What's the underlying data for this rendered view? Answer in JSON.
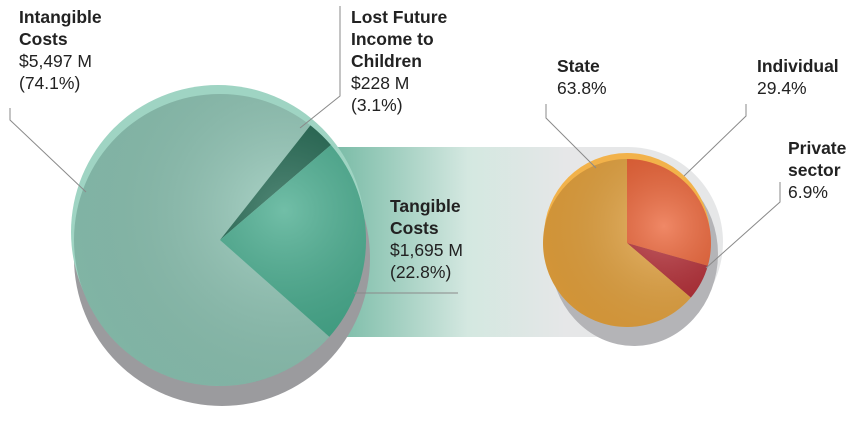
{
  "chart_data": [
    {
      "type": "pie",
      "slices": [
        {
          "name": "Intangible\nCosts",
          "amount": "$5,497 M",
          "percent": "(74.1%)",
          "value": 74.1,
          "color": "#8cc4b3"
        },
        {
          "name": "Lost Future\nIncome to\nChildren",
          "amount": "$228 M",
          "percent": "(3.1%)",
          "value": 3.1,
          "color": "#0f5a42"
        },
        {
          "name": "Tangible\nCosts",
          "amount": "$1,695 M",
          "percent": "(22.8%)",
          "value": 22.8,
          "color": "#3aa585"
        }
      ],
      "legend": "none",
      "grid": false
    },
    {
      "type": "pie",
      "slices": [
        {
          "name": "State",
          "percent": "63.8%",
          "value": 63.8,
          "color": "#e5a23c"
        },
        {
          "name": "Individual",
          "percent": "29.4%",
          "value": 29.4,
          "color": "#ea5a2b"
        },
        {
          "name": "Private\nsector",
          "percent": "6.9%",
          "value": 6.9,
          "color": "#b0232c"
        }
      ],
      "legend": "none",
      "grid": false
    }
  ]
}
